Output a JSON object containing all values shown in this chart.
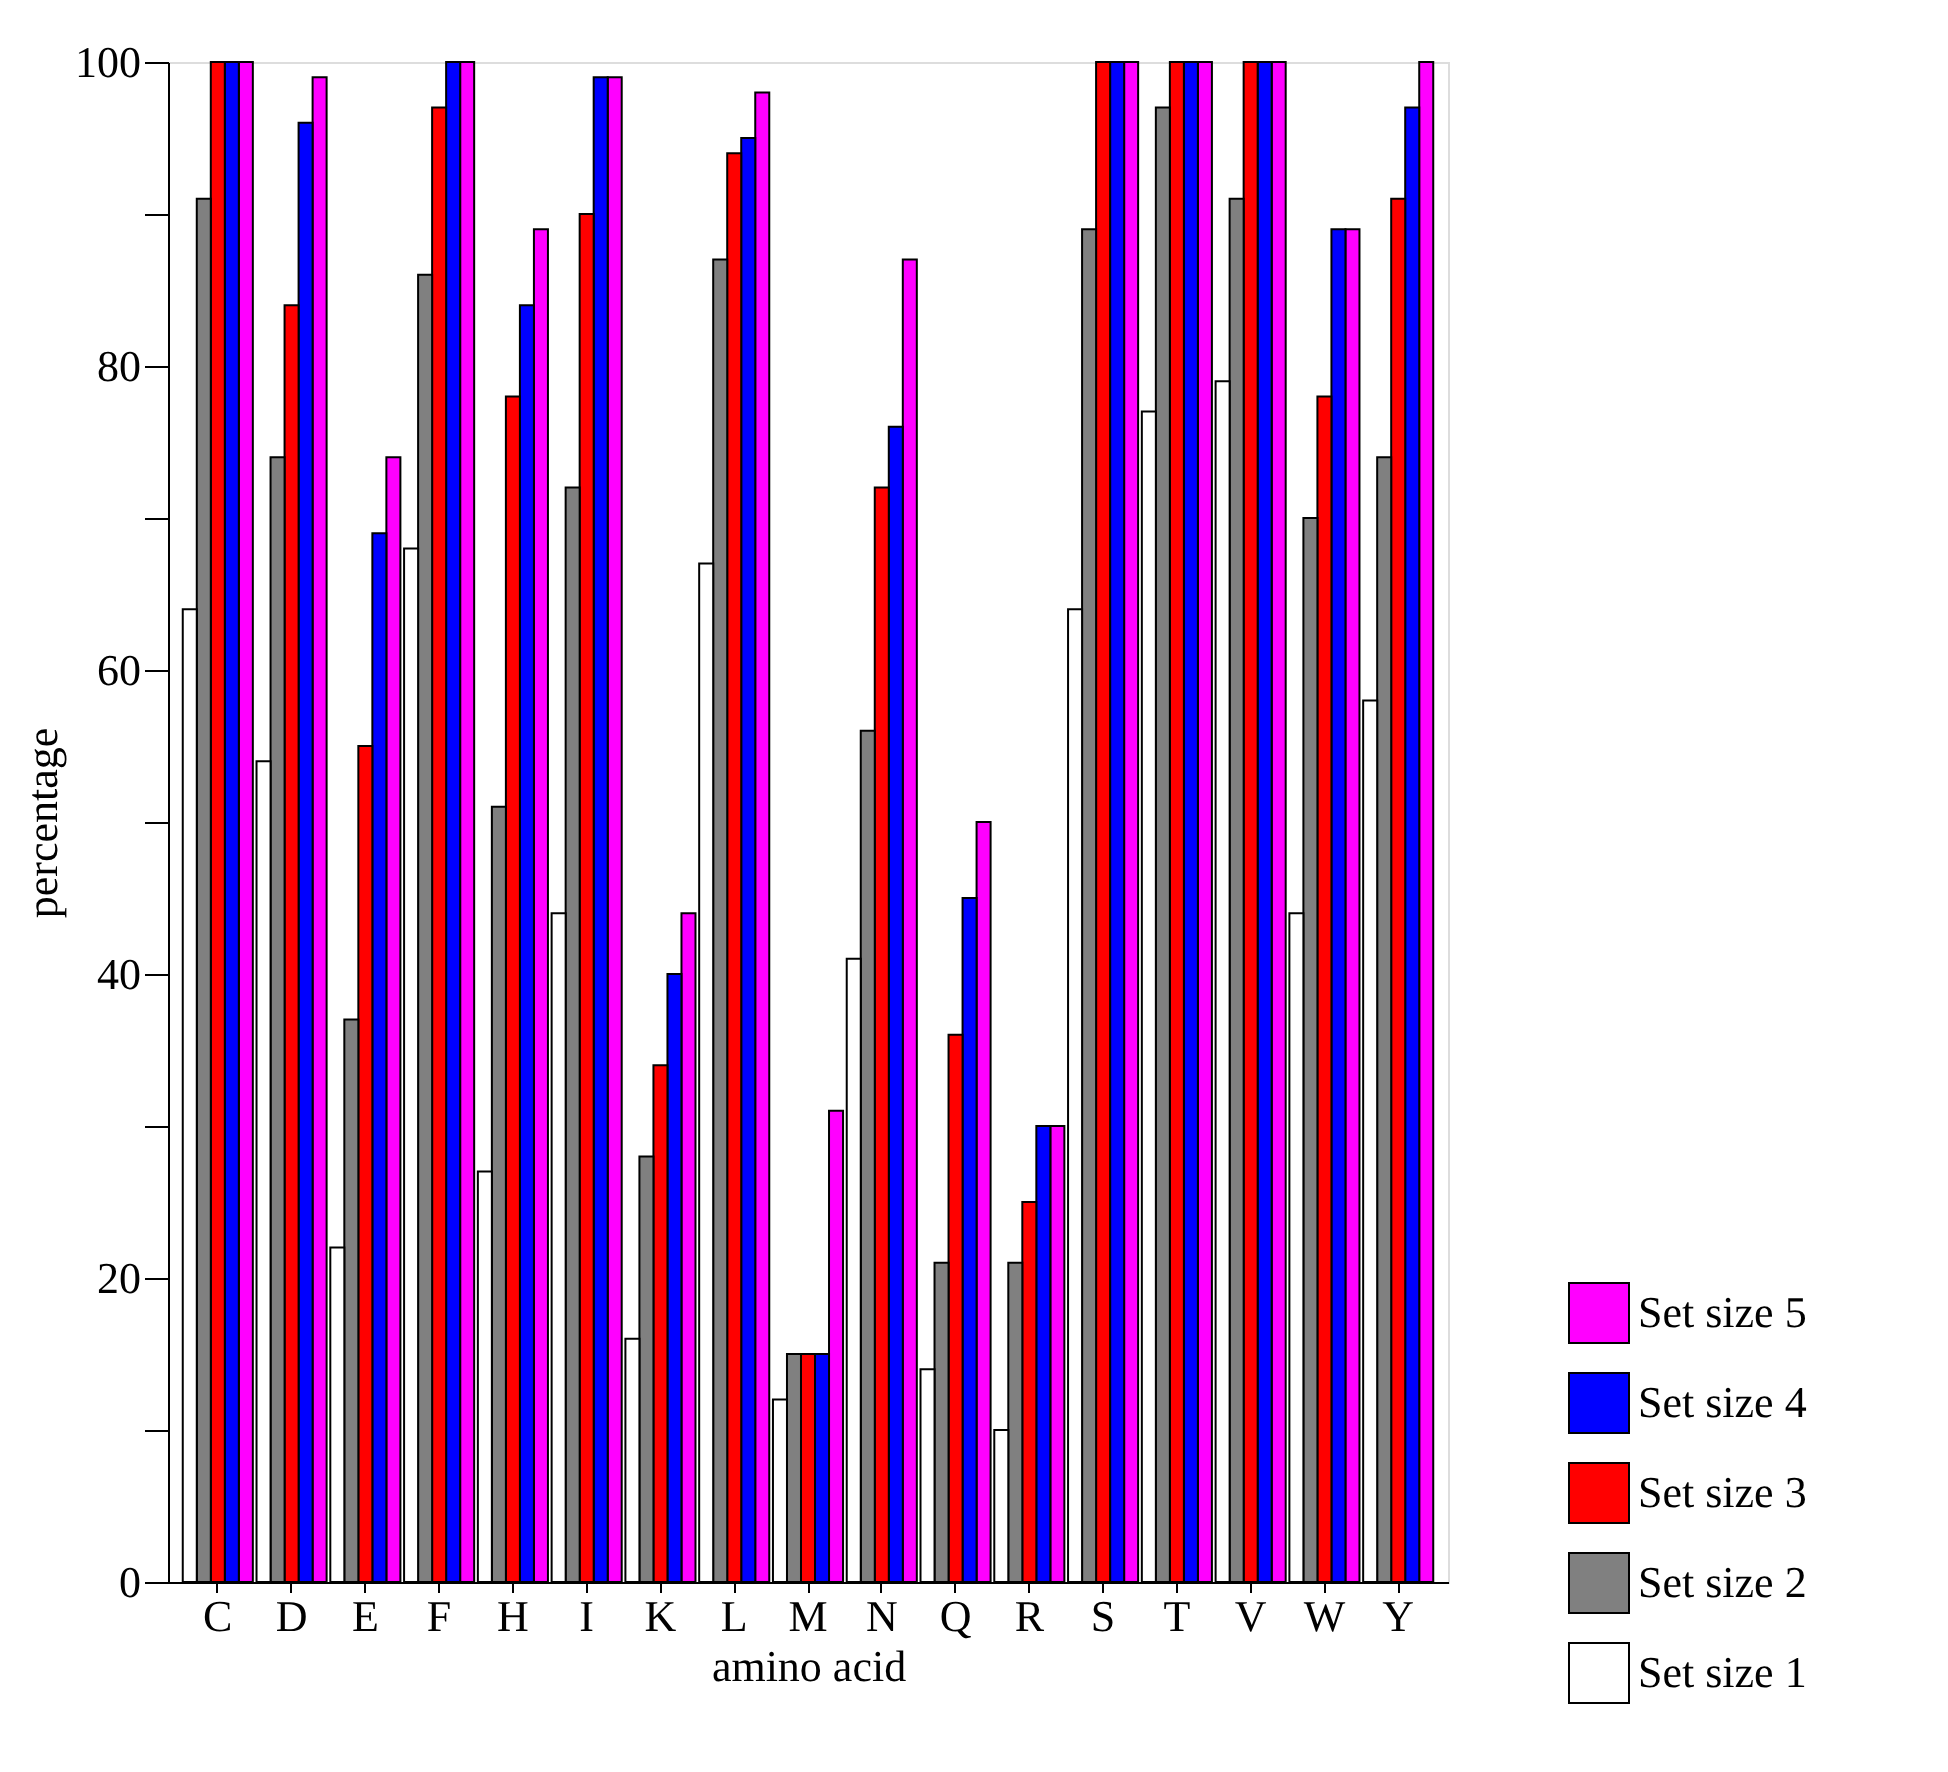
{
  "chart_data": {
    "type": "bar",
    "xlabel": "amino acid",
    "ylabel": "percentage",
    "categories": [
      "C",
      "D",
      "E",
      "F",
      "H",
      "I",
      "K",
      "L",
      "M",
      "N",
      "Q",
      "R",
      "S",
      "T",
      "V",
      "W",
      "Y"
    ],
    "series": [
      {
        "name": "Set size 5",
        "color": "#ff00ff",
        "values": [
          100,
          99,
          74,
          100,
          89,
          99,
          44,
          98,
          31,
          87,
          50,
          30,
          100,
          100,
          100,
          89,
          100
        ]
      },
      {
        "name": "Set size 4",
        "color": "#0000ff",
        "values": [
          100,
          96,
          69,
          100,
          84,
          99,
          40,
          95,
          15,
          76,
          45,
          30,
          100,
          100,
          100,
          89,
          97
        ]
      },
      {
        "name": "Set size 3",
        "color": "#ff0000",
        "values": [
          100,
          84,
          55,
          97,
          78,
          90,
          34,
          94,
          15,
          72,
          36,
          25,
          100,
          100,
          100,
          78,
          91
        ]
      },
      {
        "name": "Set size 2",
        "color": "#808080",
        "values": [
          91,
          74,
          37,
          86,
          51,
          72,
          28,
          87,
          15,
          56,
          21,
          21,
          89,
          97,
          91,
          70,
          74
        ]
      },
      {
        "name": "Set size 1",
        "color": "#ffffff",
        "values": [
          64,
          54,
          22,
          68,
          27,
          44,
          16,
          67,
          12,
          41,
          14,
          10,
          64,
          77,
          79,
          44,
          58
        ]
      }
    ],
    "ylim": [
      0,
      100
    ],
    "yticks": [
      0,
      {
        "value": 10,
        "label": null
      },
      20,
      {
        "value": 30,
        "label": null
      },
      40,
      {
        "value": 50,
        "label": null
      },
      60,
      {
        "value": 70,
        "label": null
      },
      80,
      {
        "value": 90,
        "label": null
      },
      100
    ],
    "grid": false,
    "legend": "bottom right"
  }
}
